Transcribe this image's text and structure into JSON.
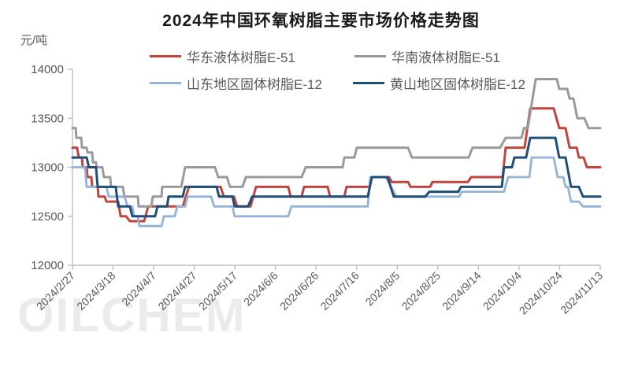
{
  "watermark": "OILCHEM",
  "chart_data": {
    "type": "line",
    "title": "2024年中国环氧树脂主要市场价格走势图",
    "y_unit": "元/吨",
    "xlabel": "",
    "ylabel": "元/吨",
    "ylim": [
      12000,
      14000
    ],
    "y_ticks": [
      12000,
      12500,
      13000,
      13500,
      14000
    ],
    "x_range_days": [
      0,
      260
    ],
    "x_tick_days": [
      0,
      20,
      40,
      60,
      80,
      100,
      120,
      140,
      160,
      180,
      200,
      220,
      240,
      260
    ],
    "x_tick_labels": [
      "2024/2/27",
      "2024/3/18",
      "2024/4/7",
      "2024/4/27",
      "2024/5/17",
      "2024/6/6",
      "2024/6/26",
      "2024/7/16",
      "2024/8/5",
      "2024/8/25",
      "2024/9/14",
      "2024/10/4",
      "2024/10/24",
      "2024/11/13"
    ],
    "grid": false,
    "legend_position": "top",
    "axis_color": "#bfbfbf",
    "tick_label_color": "#595959",
    "series": [
      {
        "name": "华东液体树脂E-51",
        "color": "#c0453e",
        "width": 3,
        "points": [
          [
            0,
            13200
          ],
          [
            2.3,
            13200
          ],
          [
            3.1,
            13100
          ],
          [
            4.7,
            13100
          ],
          [
            5.0,
            13000
          ],
          [
            7.0,
            13000
          ],
          [
            7.4,
            12900
          ],
          [
            9.3,
            12900
          ],
          [
            9.7,
            12800
          ],
          [
            12.4,
            12800
          ],
          [
            12.8,
            12700
          ],
          [
            15.9,
            12700
          ],
          [
            16.7,
            12650
          ],
          [
            22.5,
            12650
          ],
          [
            23.7,
            12500
          ],
          [
            26.4,
            12500
          ],
          [
            28.3,
            12450
          ],
          [
            35.3,
            12450
          ],
          [
            37.3,
            12600
          ],
          [
            54.3,
            12600
          ],
          [
            57.4,
            12800
          ],
          [
            73.0,
            12800
          ],
          [
            74.5,
            12700
          ],
          [
            79.6,
            12700
          ],
          [
            81.1,
            12600
          ],
          [
            87.7,
            12600
          ],
          [
            90.4,
            12800
          ],
          [
            106.3,
            12800
          ],
          [
            107.5,
            12700
          ],
          [
            112.9,
            12700
          ],
          [
            114.1,
            12800
          ],
          [
            125.7,
            12800
          ],
          [
            126.9,
            12700
          ],
          [
            133.9,
            12700
          ],
          [
            135.0,
            12800
          ],
          [
            146.3,
            12800
          ],
          [
            147.5,
            12900
          ],
          [
            156.0,
            12900
          ],
          [
            157.2,
            12850
          ],
          [
            165.3,
            12850
          ],
          [
            166.5,
            12800
          ],
          [
            176.2,
            12800
          ],
          [
            177.3,
            12850
          ],
          [
            194.8,
            12850
          ],
          [
            196.4,
            12900
          ],
          [
            211.9,
            12900
          ],
          [
            213.4,
            13200
          ],
          [
            222.7,
            13200
          ],
          [
            225.5,
            13600
          ],
          [
            237.1,
            13600
          ],
          [
            239.8,
            13400
          ],
          [
            242.9,
            13400
          ],
          [
            244.9,
            13200
          ],
          [
            248.4,
            13200
          ],
          [
            249.5,
            13100
          ],
          [
            251.8,
            13100
          ],
          [
            253.4,
            13000
          ],
          [
            260,
            13000
          ]
        ]
      },
      {
        "name": "华南液体树脂E-51",
        "color": "#9a9a9a",
        "width": 3,
        "points": [
          [
            0,
            13400
          ],
          [
            1.6,
            13400
          ],
          [
            1.9,
            13300
          ],
          [
            4.3,
            13300
          ],
          [
            4.7,
            13200
          ],
          [
            7.0,
            13200
          ],
          [
            7.4,
            13150
          ],
          [
            9.7,
            13150
          ],
          [
            10.1,
            13050
          ],
          [
            11.6,
            13050
          ],
          [
            12.0,
            13000
          ],
          [
            14.7,
            13000
          ],
          [
            15.5,
            12900
          ],
          [
            18.6,
            12900
          ],
          [
            19.0,
            12800
          ],
          [
            24.8,
            12800
          ],
          [
            25.6,
            12700
          ],
          [
            32.2,
            12700
          ],
          [
            32.6,
            12600
          ],
          [
            38.8,
            12600
          ],
          [
            39.6,
            12700
          ],
          [
            43.9,
            12700
          ],
          [
            44.2,
            12800
          ],
          [
            53.6,
            12800
          ],
          [
            55.5,
            13000
          ],
          [
            70.2,
            13000
          ],
          [
            71.8,
            12900
          ],
          [
            76.1,
            12900
          ],
          [
            77.6,
            12800
          ],
          [
            83.8,
            12800
          ],
          [
            85.4,
            12900
          ],
          [
            112.9,
            12900
          ],
          [
            114.9,
            13000
          ],
          [
            133.1,
            13000
          ],
          [
            133.9,
            13100
          ],
          [
            138.9,
            13100
          ],
          [
            140.1,
            13200
          ],
          [
            165.3,
            13200
          ],
          [
            167.2,
            13100
          ],
          [
            195.2,
            13100
          ],
          [
            197.1,
            13200
          ],
          [
            210.7,
            13200
          ],
          [
            213.4,
            13300
          ],
          [
            221.2,
            13300
          ],
          [
            222.4,
            13400
          ],
          [
            224.3,
            13400
          ],
          [
            228.2,
            13900
          ],
          [
            238.6,
            13900
          ],
          [
            239.8,
            13800
          ],
          [
            243.7,
            13800
          ],
          [
            244.9,
            13700
          ],
          [
            246.8,
            13700
          ],
          [
            248.7,
            13500
          ],
          [
            252.2,
            13500
          ],
          [
            254.2,
            13400
          ],
          [
            260,
            13400
          ]
        ]
      },
      {
        "name": "山东地区固体树脂E-12",
        "color": "#95b3d7",
        "width": 2.8,
        "points": [
          [
            0,
            13000
          ],
          [
            6.2,
            13000
          ],
          [
            7.0,
            12800
          ],
          [
            16.7,
            12800
          ],
          [
            17.9,
            12700
          ],
          [
            25.6,
            12700
          ],
          [
            27.2,
            12600
          ],
          [
            29.5,
            12600
          ],
          [
            30.3,
            12500
          ],
          [
            32.2,
            12500
          ],
          [
            33.0,
            12400
          ],
          [
            43.9,
            12400
          ],
          [
            45.0,
            12500
          ],
          [
            50.4,
            12500
          ],
          [
            51.6,
            12600
          ],
          [
            55.5,
            12600
          ],
          [
            56.7,
            12700
          ],
          [
            68.3,
            12700
          ],
          [
            69.8,
            12600
          ],
          [
            78.8,
            12600
          ],
          [
            79.9,
            12500
          ],
          [
            106.3,
            12500
          ],
          [
            107.9,
            12600
          ],
          [
            145.5,
            12600
          ],
          [
            146.7,
            12900
          ],
          [
            154.4,
            12900
          ],
          [
            159.5,
            12700
          ],
          [
            190.5,
            12700
          ],
          [
            191.7,
            12750
          ],
          [
            212.6,
            12750
          ],
          [
            214.6,
            12900
          ],
          [
            225.1,
            12900
          ],
          [
            226.2,
            13100
          ],
          [
            237.1,
            13100
          ],
          [
            239.0,
            12900
          ],
          [
            241.8,
            12900
          ],
          [
            242.9,
            12800
          ],
          [
            244.1,
            12800
          ],
          [
            245.6,
            12650
          ],
          [
            249.5,
            12650
          ],
          [
            251.5,
            12600
          ],
          [
            260,
            12600
          ]
        ]
      },
      {
        "name": "黄山地区固体树脂E-12",
        "color": "#1f4e79",
        "width": 3,
        "points": [
          [
            0,
            13100
          ],
          [
            7.0,
            13100
          ],
          [
            8.1,
            13000
          ],
          [
            11.6,
            13000
          ],
          [
            12.4,
            12800
          ],
          [
            21.3,
            12800
          ],
          [
            22.5,
            12600
          ],
          [
            28.3,
            12600
          ],
          [
            29.5,
            12500
          ],
          [
            40.7,
            12500
          ],
          [
            41.9,
            12600
          ],
          [
            46.6,
            12600
          ],
          [
            47.3,
            12700
          ],
          [
            54.3,
            12700
          ],
          [
            55.5,
            12800
          ],
          [
            71.0,
            12800
          ],
          [
            72.2,
            12700
          ],
          [
            78.8,
            12700
          ],
          [
            79.9,
            12600
          ],
          [
            86.5,
            12600
          ],
          [
            88.5,
            12700
          ],
          [
            145.5,
            12700
          ],
          [
            147.5,
            12900
          ],
          [
            155.2,
            12900
          ],
          [
            158.3,
            12700
          ],
          [
            173.8,
            12700
          ],
          [
            175.8,
            12750
          ],
          [
            190.1,
            12750
          ],
          [
            191.3,
            12800
          ],
          [
            211.5,
            12800
          ],
          [
            212.6,
            13000
          ],
          [
            216.5,
            13000
          ],
          [
            217.7,
            13100
          ],
          [
            223.5,
            13100
          ],
          [
            225.5,
            13300
          ],
          [
            237.9,
            13300
          ],
          [
            239.8,
            13100
          ],
          [
            242.9,
            13100
          ],
          [
            245.6,
            12800
          ],
          [
            249.5,
            12800
          ],
          [
            251.5,
            12700
          ],
          [
            260,
            12700
          ]
        ]
      }
    ]
  }
}
